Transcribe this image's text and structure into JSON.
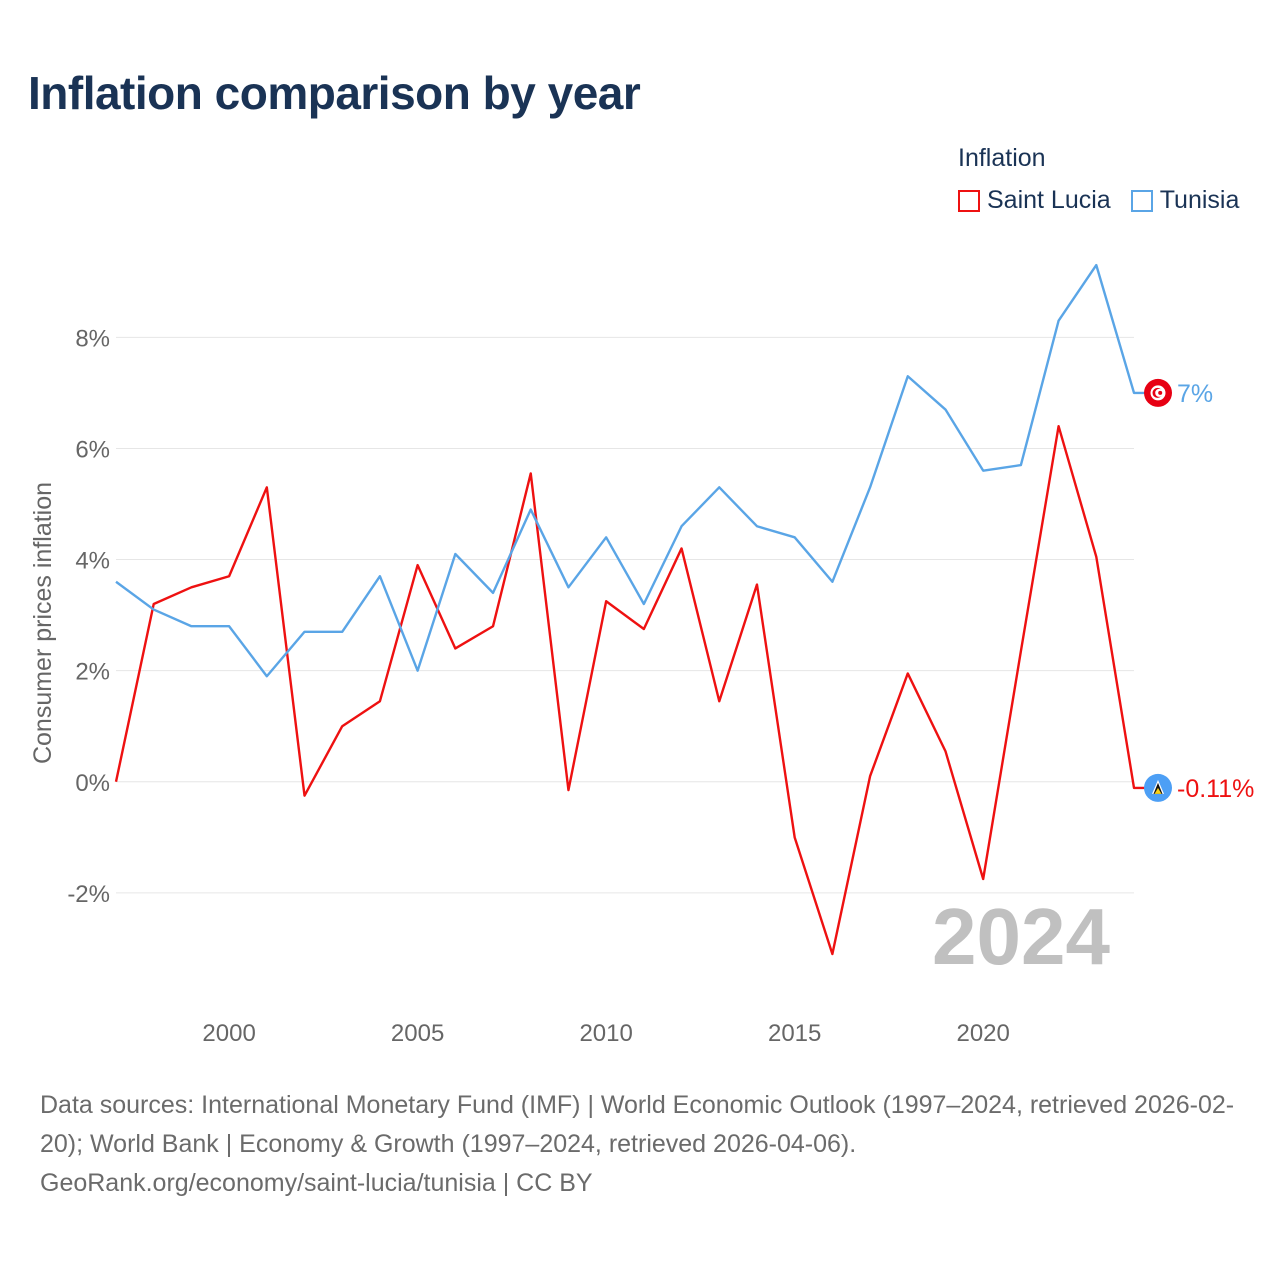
{
  "title": "Inflation comparison by year",
  "legend": {
    "title": "Inflation",
    "items": [
      {
        "label": "Saint Lucia",
        "color": "#ee1111"
      },
      {
        "label": "Tunisia",
        "color": "#5aa5e6"
      }
    ]
  },
  "chart_data": {
    "type": "line",
    "ylabel": "Consumer prices inflation",
    "xlabel": "",
    "x": [
      1997,
      1998,
      1999,
      2000,
      2001,
      2002,
      2003,
      2004,
      2005,
      2006,
      2007,
      2008,
      2009,
      2010,
      2011,
      2012,
      2013,
      2014,
      2015,
      2016,
      2017,
      2018,
      2019,
      2020,
      2021,
      2022,
      2023,
      2024
    ],
    "xlim": [
      1997,
      2024
    ],
    "ylim": [
      -4,
      9.5
    ],
    "xticks": [
      2000,
      2005,
      2010,
      2015,
      2020
    ],
    "yticks": [
      -2,
      0,
      2,
      4,
      6,
      8
    ],
    "ytick_labels": [
      "-2%",
      "0%",
      "2%",
      "4%",
      "6%",
      "8%"
    ],
    "xtick_labels": [
      "2000",
      "2005",
      "2010",
      "2015",
      "2020"
    ],
    "series": [
      {
        "name": "Saint Lucia",
        "color": "#ee1111",
        "values": [
          0.0,
          3.2,
          3.5,
          3.7,
          5.3,
          -0.25,
          1.0,
          1.45,
          3.9,
          2.4,
          2.8,
          5.55,
          -0.15,
          3.25,
          2.75,
          4.2,
          1.45,
          3.55,
          -1.0,
          -3.1,
          0.1,
          1.95,
          0.55,
          -1.75,
          2.35,
          6.4,
          4.05,
          -0.11
        ],
        "end_label": "-0.11%"
      },
      {
        "name": "Tunisia",
        "color": "#5aa5e6",
        "values": [
          3.6,
          3.1,
          2.8,
          2.8,
          1.9,
          2.7,
          2.7,
          3.7,
          2.0,
          4.1,
          3.4,
          4.9,
          3.5,
          4.4,
          3.2,
          4.6,
          5.3,
          4.6,
          4.4,
          3.6,
          5.3,
          7.3,
          6.7,
          5.6,
          5.7,
          8.3,
          9.3,
          7.0
        ],
        "end_label": "7%"
      }
    ],
    "annotation": "2024",
    "grid": true
  },
  "footer": {
    "sources": "Data sources: International Monetary Fund (IMF) | World Economic Outlook (1997–2024, retrieved 2026-02-20); World Bank | Economy & Growth (1997–2024, retrieved 2026-04-06).",
    "credit": "GeoRank.org/economy/saint-lucia/tunisia | CC BY"
  }
}
